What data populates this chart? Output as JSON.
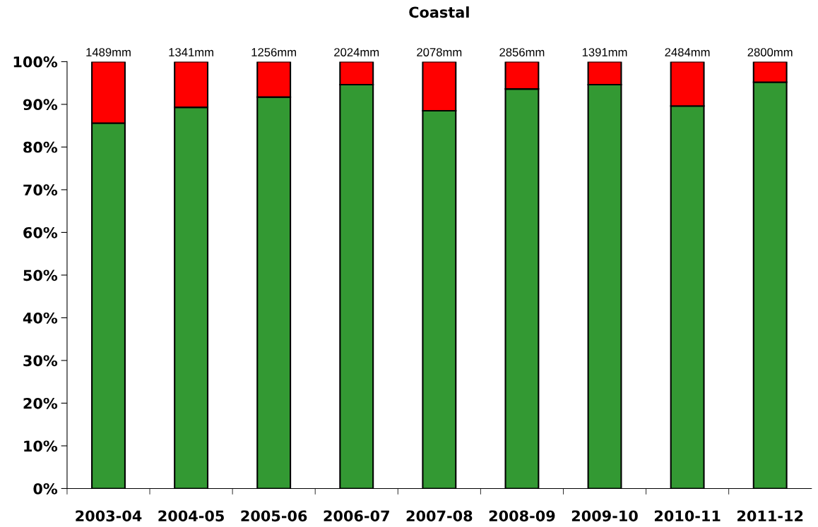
{
  "chart_data": {
    "type": "bar",
    "title": "Coastal",
    "stacked": true,
    "categories": [
      "2003-04",
      "2004-05",
      "2005-06",
      "2006-07",
      "2007-08",
      "2008-09",
      "2009-10",
      "2010-11",
      "2011-12"
    ],
    "series": [
      {
        "color": "#339933",
        "values": [
          85.6,
          89.3,
          91.7,
          94.6,
          88.5,
          93.6,
          94.6,
          89.6,
          95.2
        ]
      },
      {
        "color": "#ff0000",
        "values": [
          14.4,
          10.7,
          8.3,
          5.4,
          11.5,
          6.4,
          5.4,
          10.4,
          4.8
        ]
      }
    ],
    "annotations": [
      {
        "text": "1489mm",
        "x": "2003-04",
        "y": 100
      },
      {
        "text": "1341mm",
        "x": "2004-05",
        "y": 100
      },
      {
        "text": "1256mm",
        "x": "2005-06",
        "y": 100
      },
      {
        "text": "2024mm",
        "x": "2006-07",
        "y": 100
      },
      {
        "text": "2078mm",
        "x": "2007-08",
        "y": 100
      },
      {
        "text": "2856mm",
        "x": "2008-09",
        "y": 100
      },
      {
        "text": "1391mm",
        "x": "2009-10",
        "y": 100
      },
      {
        "text": "2484mm",
        "x": "2010-11",
        "y": 100
      },
      {
        "text": "2800mm",
        "x": "2011-12",
        "y": 100
      }
    ],
    "ylim": [
      0,
      100
    ],
    "yticks": [
      {
        "value": 0,
        "label": "0%"
      },
      {
        "value": 10,
        "label": "10%"
      },
      {
        "value": 20,
        "label": "20%"
      },
      {
        "value": 30,
        "label": "30%"
      },
      {
        "value": 40,
        "label": "40%"
      },
      {
        "value": 50,
        "label": "50%"
      },
      {
        "value": 60,
        "label": "60%"
      },
      {
        "value": 70,
        "label": "70%"
      },
      {
        "value": 80,
        "label": "80%"
      },
      {
        "value": 90,
        "label": "90%"
      },
      {
        "value": 100,
        "label": "100%"
      }
    ],
    "grid": false,
    "legend": false
  }
}
